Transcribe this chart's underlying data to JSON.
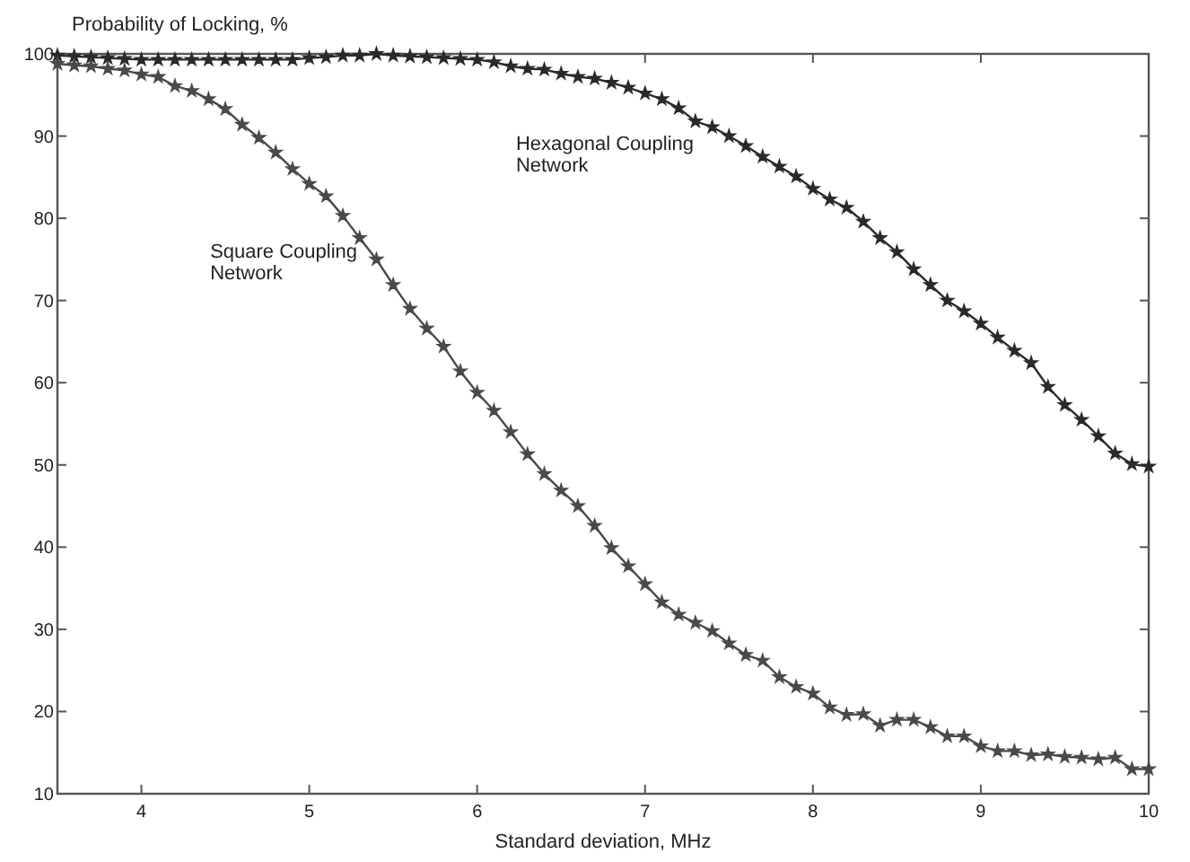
{
  "chart_data": {
    "type": "line",
    "ylabel": "Probability of Locking, %",
    "xlabel": "Standard deviation, MHz",
    "x": [
      3.5,
      3.6,
      3.7,
      3.8,
      3.9,
      4.0,
      4.1,
      4.2,
      4.3,
      4.4,
      4.5,
      4.6,
      4.7,
      4.8,
      4.9,
      5.0,
      5.1,
      5.2,
      5.3,
      5.4,
      5.5,
      5.6,
      5.7,
      5.8,
      5.9,
      6.0,
      6.1,
      6.2,
      6.3,
      6.4,
      6.5,
      6.6,
      6.7,
      6.8,
      6.9,
      7.0,
      7.1,
      7.2,
      7.3,
      7.4,
      7.5,
      7.6,
      7.7,
      7.8,
      7.9,
      8.0,
      8.1,
      8.2,
      8.3,
      8.4,
      8.5,
      8.6,
      8.7,
      8.8,
      8.9,
      9.0,
      9.1,
      9.2,
      9.3,
      9.4,
      9.5,
      9.6,
      9.7,
      9.8,
      9.9,
      10.0
    ],
    "series": [
      {
        "name": "Hexagonal Coupling Network",
        "color": "#2a2a2a",
        "values": [
          99.8,
          99.7,
          99.6,
          99.5,
          99.4,
          99.3,
          99.3,
          99.3,
          99.3,
          99.3,
          99.3,
          99.3,
          99.3,
          99.3,
          99.3,
          99.5,
          99.6,
          99.8,
          99.8,
          100,
          99.8,
          99.7,
          99.6,
          99.5,
          99.4,
          99.3,
          99.0,
          98.5,
          98.2,
          98.1,
          97.6,
          97.2,
          97.0,
          96.5,
          95.9,
          95.2,
          94.5,
          93.4,
          91.8,
          91.1,
          90.0,
          88.8,
          87.5,
          86.3,
          85.1,
          83.6,
          82.3,
          81.3,
          79.6,
          77.6,
          75.9,
          73.8,
          71.9,
          70.0,
          68.7,
          67.2,
          65.5,
          63.9,
          62.4,
          59.5,
          57.3,
          55.5,
          53.5,
          51.4,
          50.1,
          49.8
        ]
      },
      {
        "name": "Square Coupling Network",
        "color": "#4a4a4a",
        "values": [
          98.8,
          98.6,
          98.5,
          98.2,
          98.0,
          97.5,
          97.2,
          96.1,
          95.5,
          94.5,
          93.3,
          91.4,
          89.8,
          88.0,
          86.0,
          84.2,
          82.7,
          80.3,
          77.6,
          75.0,
          71.9,
          69.0,
          66.6,
          64.4,
          61.4,
          58.8,
          56.6,
          54.0,
          51.3,
          48.9,
          46.9,
          45.0,
          42.6,
          39.9,
          37.7,
          35.5,
          33.3,
          31.8,
          30.8,
          29.8,
          28.3,
          26.9,
          26.2,
          24.2,
          23.0,
          22.2,
          20.5,
          19.6,
          19.7,
          18.3,
          19.0,
          19.0,
          18.1,
          17.0,
          17.0,
          15.8,
          15.2,
          15.2,
          14.7,
          14.8,
          14.5,
          14.4,
          14.2,
          14.4,
          13.0,
          13.0
        ]
      }
    ],
    "xlim": [
      3.5,
      10
    ],
    "xticks": [
      4,
      5,
      6,
      7,
      8,
      9,
      10
    ],
    "ylim": [
      10,
      100
    ],
    "yticks": [
      10,
      20,
      30,
      40,
      50,
      60,
      70,
      80,
      90,
      100
    ],
    "marker": "star",
    "line_style": "solid",
    "grid": false,
    "legend": false
  }
}
